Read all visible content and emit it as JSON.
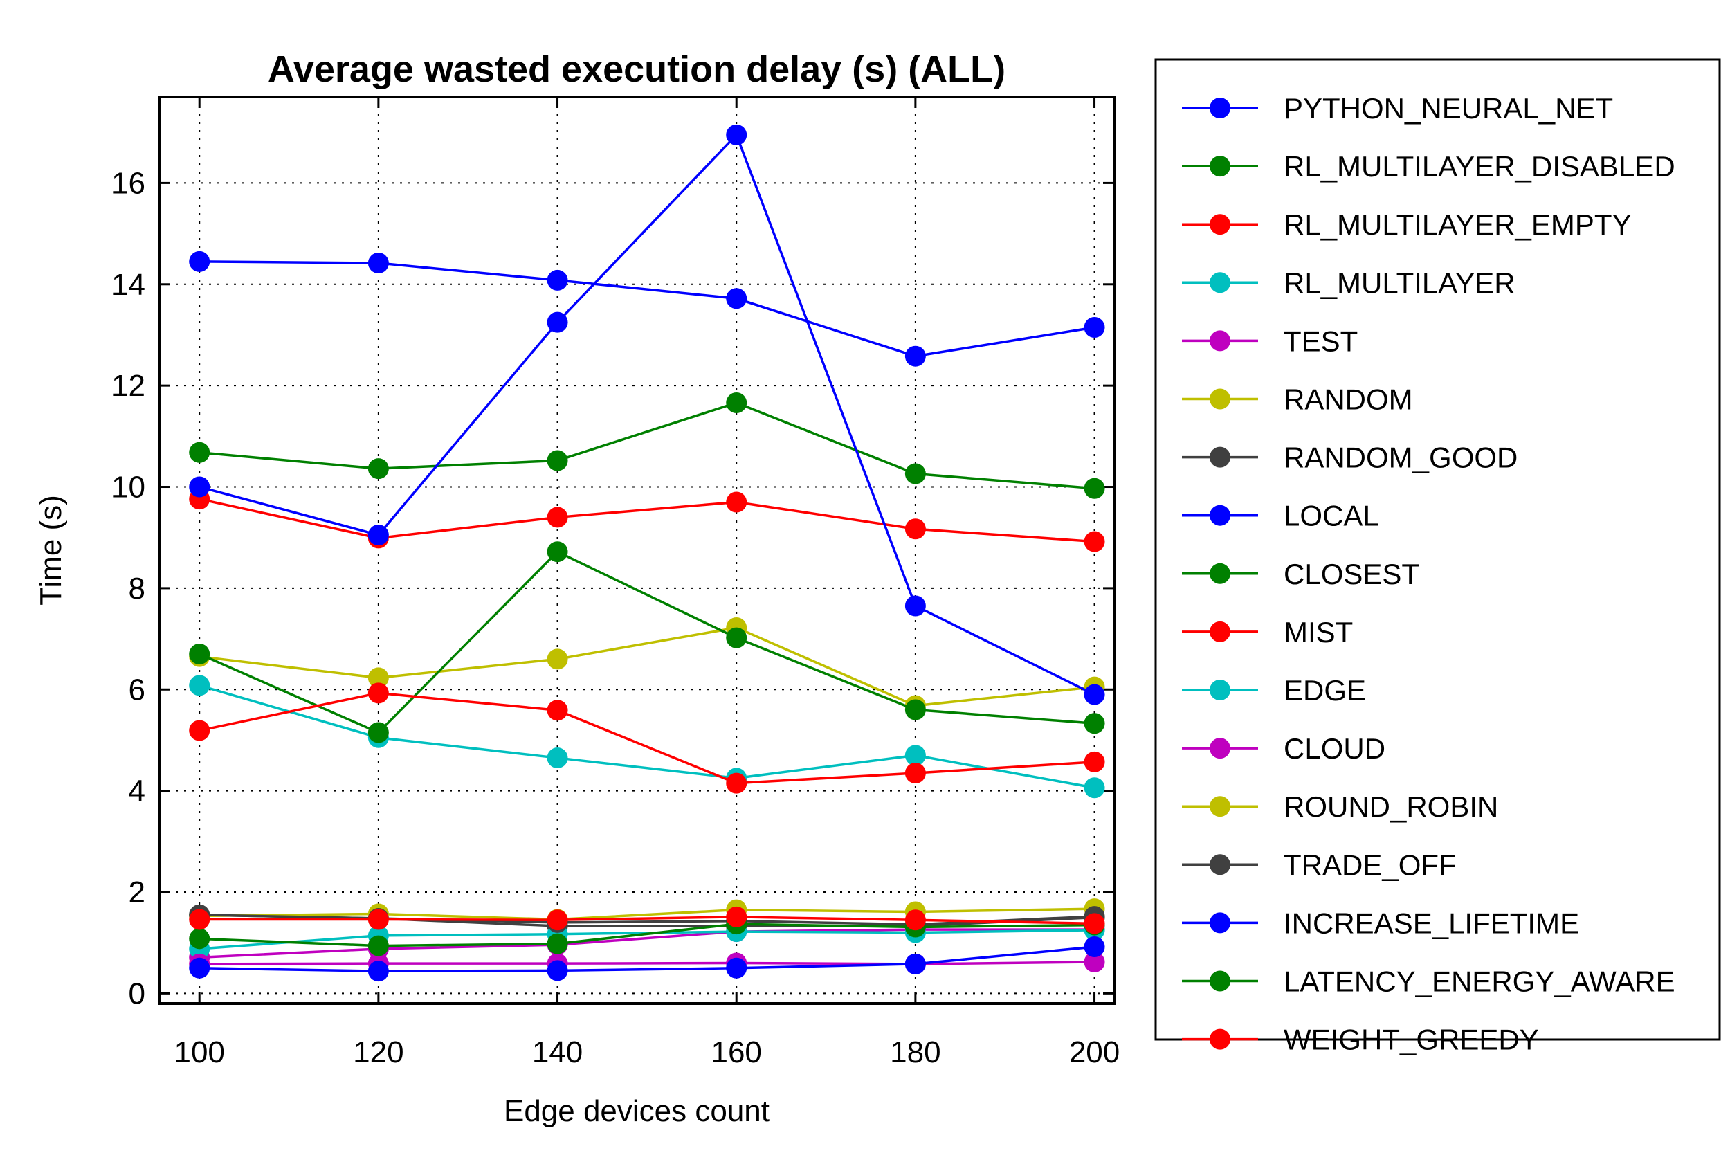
{
  "chart_data": {
    "type": "line",
    "title": "Average wasted execution delay (s) (ALL)",
    "xlabel": "Edge devices count",
    "ylabel": "Time (s)",
    "x": [
      100,
      120,
      140,
      160,
      180,
      200
    ],
    "xticks": [
      "100",
      "120",
      "140",
      "160",
      "180",
      "200"
    ],
    "yticks": [
      "0",
      "2",
      "4",
      "6",
      "8",
      "10",
      "12",
      "14",
      "16"
    ],
    "xlim": [
      95.5,
      202.2
    ],
    "ylim": [
      -0.2,
      17.7
    ],
    "grid": true,
    "legend_position": "outside-right",
    "series": [
      {
        "name": "PYTHON_NEURAL_NET",
        "color": "#0000ff",
        "values": [
          14.45,
          14.42,
          14.08,
          13.72,
          12.58,
          13.15
        ]
      },
      {
        "name": "RL_MULTILAYER_DISABLED",
        "color": "#008000",
        "values": [
          10.68,
          10.36,
          10.52,
          11.66,
          10.26,
          9.97
        ]
      },
      {
        "name": "RL_MULTILAYER_EMPTY",
        "color": "#ff0000",
        "values": [
          9.76,
          8.99,
          9.4,
          9.7,
          9.17,
          8.92
        ]
      },
      {
        "name": "RL_MULTILAYER",
        "color": "#00bfbf",
        "values": [
          6.08,
          5.05,
          4.65,
          4.25,
          4.7,
          4.06
        ]
      },
      {
        "name": "TEST",
        "color": "#bf00bf",
        "values": [
          0.71,
          0.88,
          0.96,
          1.22,
          1.26,
          1.26
        ]
      },
      {
        "name": "RANDOM",
        "color": "#bfbf00",
        "values": [
          6.65,
          6.23,
          6.6,
          7.22,
          5.68,
          6.05
        ]
      },
      {
        "name": "RANDOM_GOOD",
        "color": "#404040",
        "values": [
          1.55,
          1.48,
          1.33,
          1.33,
          1.33,
          1.5
        ]
      },
      {
        "name": "LOCAL",
        "color": "#0000ff",
        "values": [
          10.0,
          9.05,
          13.25,
          16.95,
          7.65,
          5.9
        ]
      },
      {
        "name": "CLOSEST",
        "color": "#008000",
        "values": [
          6.7,
          5.15,
          8.72,
          7.02,
          5.6,
          5.33
        ]
      },
      {
        "name": "MIST",
        "color": "#ff0000",
        "values": [
          5.19,
          5.93,
          5.59,
          4.15,
          4.35,
          4.57
        ]
      },
      {
        "name": "EDGE",
        "color": "#00bfbf",
        "values": [
          0.88,
          1.14,
          1.17,
          1.22,
          1.2,
          1.25
        ]
      },
      {
        "name": "CLOUD",
        "color": "#bf00bf",
        "values": [
          0.58,
          0.59,
          0.59,
          0.6,
          0.58,
          0.62
        ]
      },
      {
        "name": "ROUND_ROBIN",
        "color": "#bfbf00",
        "values": [
          1.53,
          1.57,
          1.46,
          1.65,
          1.61,
          1.67
        ]
      },
      {
        "name": "TRADE_OFF",
        "color": "#404040",
        "values": [
          1.55,
          1.48,
          1.4,
          1.43,
          1.36,
          1.52
        ]
      },
      {
        "name": "INCREASE_LIFETIME",
        "color": "#0000ff",
        "values": [
          0.5,
          0.44,
          0.45,
          0.5,
          0.58,
          0.92
        ]
      },
      {
        "name": "LATENCY_ENERGY_AWARE",
        "color": "#008000",
        "values": [
          1.08,
          0.94,
          0.98,
          1.37,
          1.31,
          1.35
        ]
      },
      {
        "name": "WEIGHT_GREEDY",
        "color": "#ff0000",
        "values": [
          1.46,
          1.46,
          1.45,
          1.51,
          1.45,
          1.38
        ]
      }
    ]
  }
}
